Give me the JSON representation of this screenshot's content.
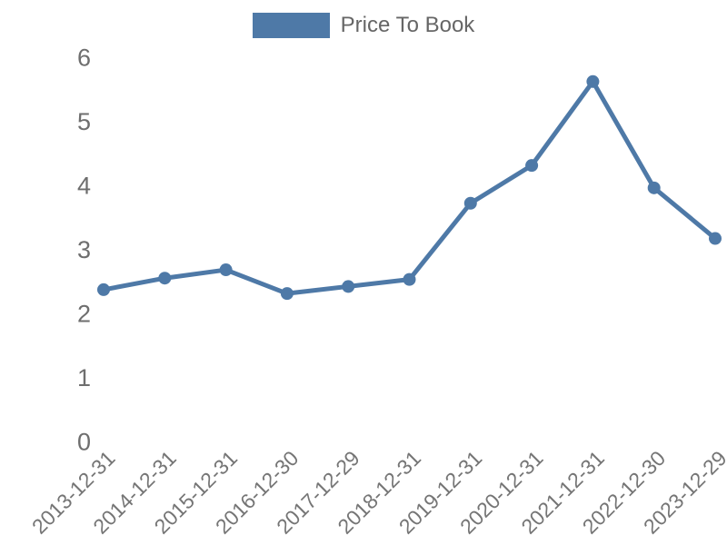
{
  "legend": {
    "label": "Price To Book",
    "swatch_color": "#4e79a7"
  },
  "chart_data": {
    "type": "line",
    "title": "",
    "xlabel": "",
    "ylabel": "",
    "categories": [
      "2013-12-31",
      "2014-12-31",
      "2015-12-31",
      "2016-12-30",
      "2017-12-29",
      "2018-12-31",
      "2019-12-31",
      "2020-12-31",
      "2021-12-31",
      "2022-12-30",
      "2023-12-29"
    ],
    "series": [
      {
        "name": "Price To Book",
        "color": "#4e79a7",
        "values": [
          2.37,
          2.55,
          2.68,
          2.31,
          2.42,
          2.53,
          3.72,
          4.31,
          5.62,
          3.96,
          3.17
        ]
      }
    ],
    "ylim": [
      0,
      6
    ],
    "yticks": [
      0,
      1,
      2,
      3,
      4,
      5,
      6
    ],
    "grid": false,
    "axis_lines": false,
    "x_tick_rotation": 45,
    "legend_position": "top",
    "marker": "circle",
    "tick_color": "#757575",
    "legend_text_color": "#666666",
    "background_color": "#ffffff"
  }
}
